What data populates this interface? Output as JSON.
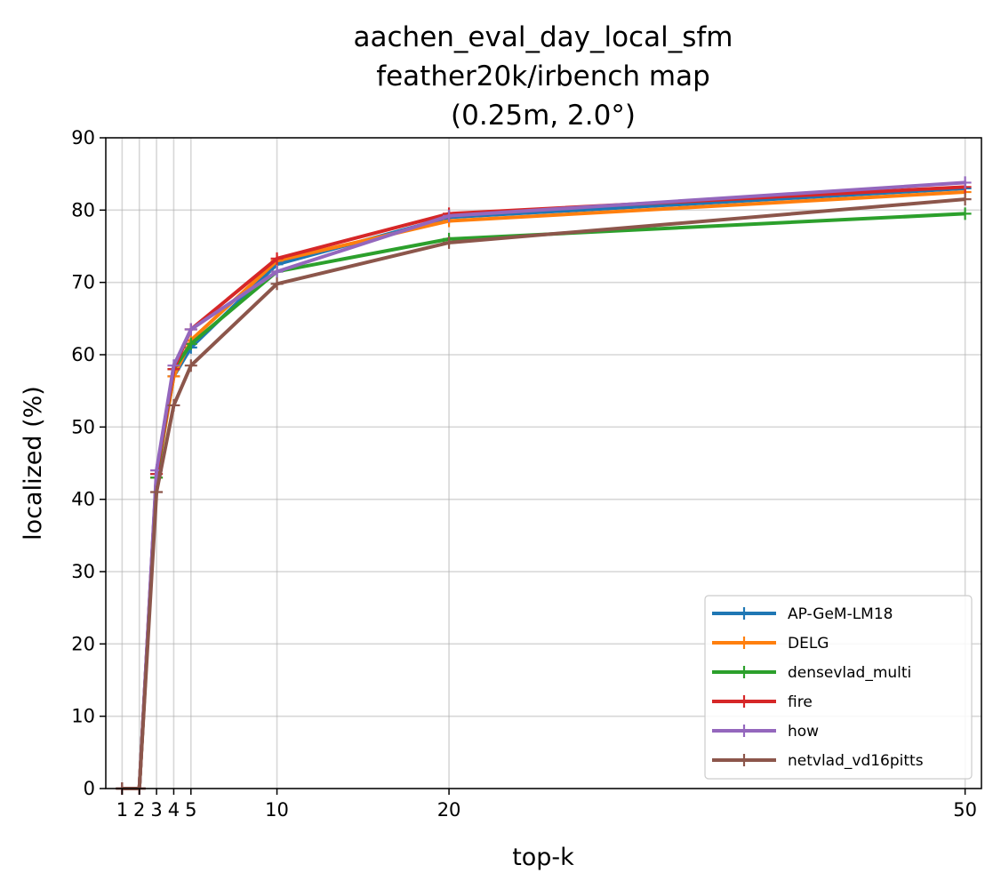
{
  "chart_data": {
    "type": "line",
    "title_lines": [
      "aachen_eval_day_local_sfm",
      "feather20k/irbench map",
      "(0.25m, 2.0°)"
    ],
    "xlabel": "top-k",
    "ylabel": "localized (%)",
    "x": [
      1,
      2,
      3,
      4,
      5,
      10,
      20,
      50
    ],
    "xticks": [
      1,
      2,
      3,
      4,
      5,
      10,
      20,
      50
    ],
    "xticklabels": [
      "1",
      "2",
      "3",
      "4",
      "5",
      "10",
      "20",
      "50"
    ],
    "yticks": [
      0,
      10,
      20,
      30,
      40,
      50,
      60,
      70,
      80,
      90
    ],
    "yticklabels": [
      "0",
      "10",
      "20",
      "30",
      "40",
      "50",
      "60",
      "70",
      "80",
      "90"
    ],
    "xlim": [
      0.05,
      50.95
    ],
    "ylim": [
      0,
      90
    ],
    "grid": true,
    "legend_position": "lower-right",
    "series": [
      {
        "name": "AP-GeM-LM18",
        "color": "#1f77b4",
        "values": [
          0,
          0,
          43.5,
          57.0,
          61.0,
          72.5,
          79.0,
          83.0
        ]
      },
      {
        "name": "DELG",
        "color": "#ff7f0e",
        "values": [
          0,
          0,
          43.0,
          57.0,
          62.0,
          73.0,
          78.5,
          82.5
        ]
      },
      {
        "name": "densevlad_multi",
        "color": "#2ca02c",
        "values": [
          0,
          0,
          43.0,
          58.0,
          61.5,
          71.5,
          76.0,
          79.5
        ]
      },
      {
        "name": "fire",
        "color": "#d62728",
        "values": [
          0,
          0,
          43.5,
          58.0,
          63.5,
          73.3,
          79.5,
          83.2
        ]
      },
      {
        "name": "how",
        "color": "#9467bd",
        "values": [
          0,
          0,
          44.0,
          58.5,
          63.5,
          71.5,
          79.2,
          83.8
        ]
      },
      {
        "name": "netvlad_vd16pitts",
        "color": "#8c564b",
        "values": [
          0,
          0,
          41.0,
          53.0,
          58.5,
          69.8,
          75.5,
          81.5
        ]
      }
    ]
  }
}
